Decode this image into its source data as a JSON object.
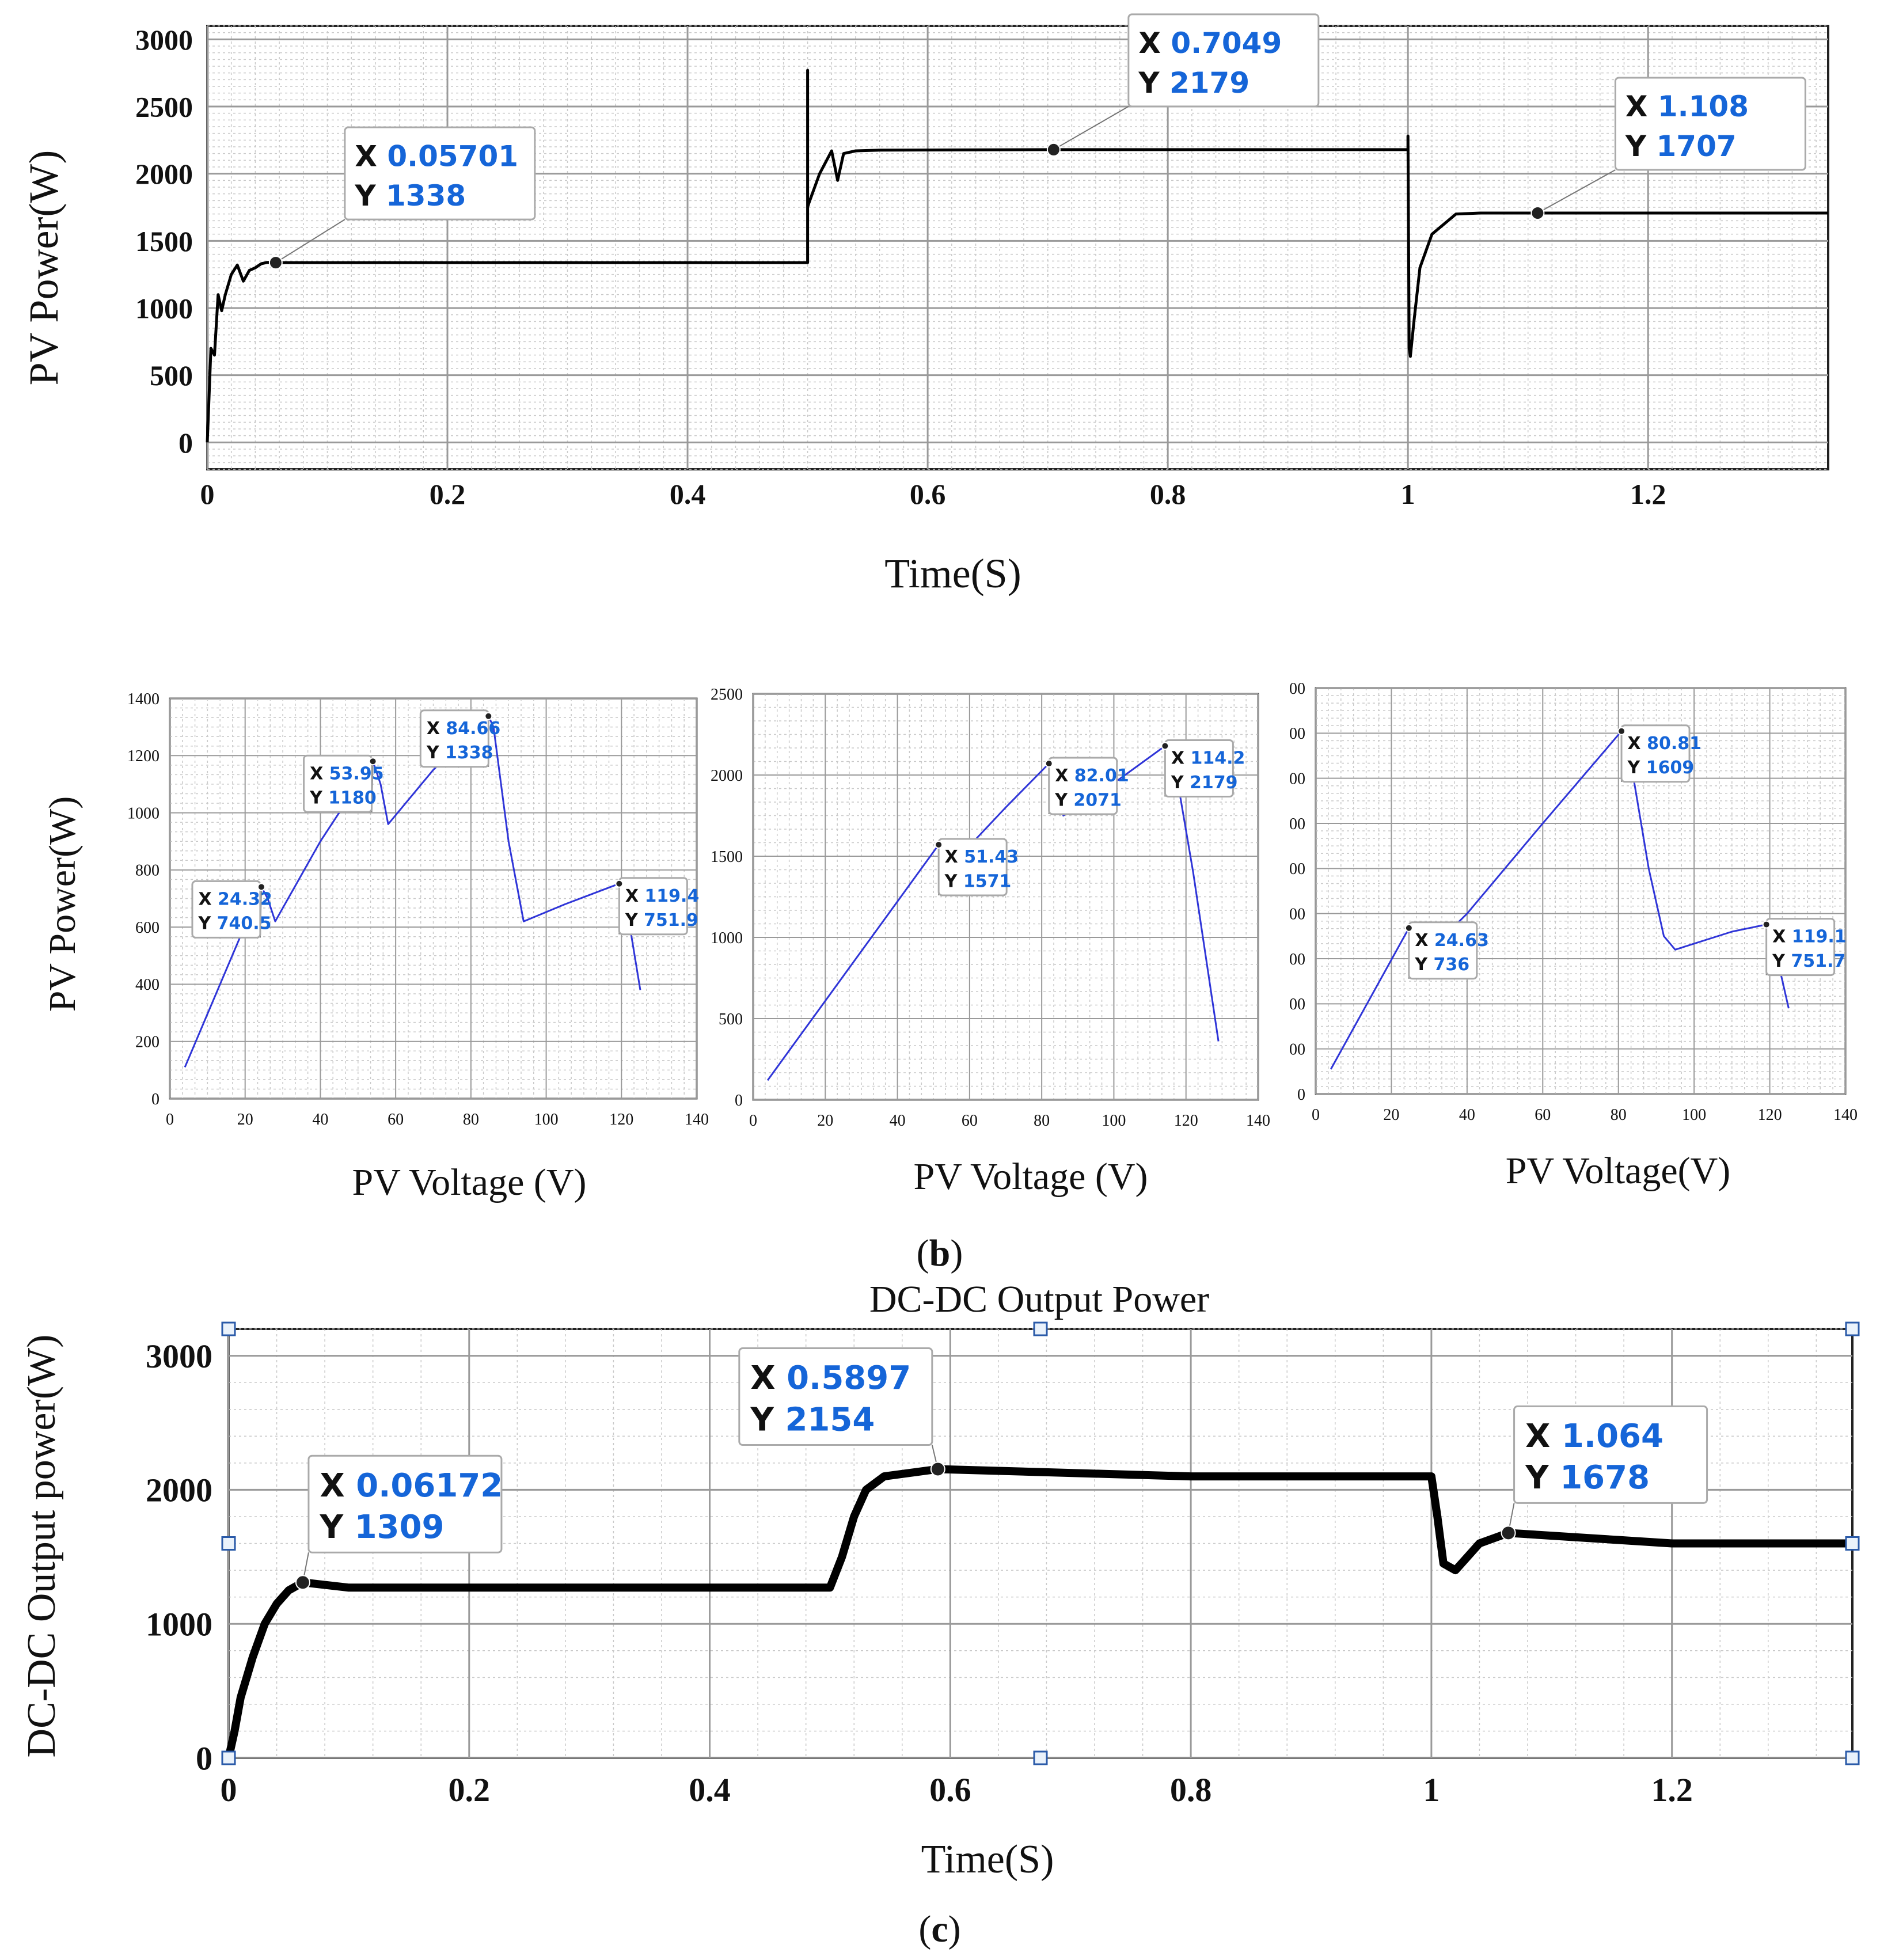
{
  "chart_data": [
    {
      "id": "a",
      "type": "line",
      "title": "",
      "xlabel": "Time(S)",
      "ylabel": "PV Power(W)",
      "xlim": [
        0,
        1.35
      ],
      "ylim": [
        -200,
        3100
      ],
      "xticks": [
        0,
        0.2,
        0.4,
        0.6,
        0.8,
        1,
        1.2
      ],
      "xtick_labels": [
        "0",
        "0.2",
        "0.4",
        "0.6",
        "0.8",
        "1",
        "1.2"
      ],
      "yticks": [
        0,
        500,
        1000,
        1500,
        2000,
        2500,
        3000
      ],
      "ytick_labels": [
        "0",
        "500",
        "1000",
        "1500",
        "2000",
        "2500",
        "3000"
      ],
      "series": [
        {
          "name": "PV Power",
          "x": [
            0,
            0.003,
            0.006,
            0.009,
            0.012,
            0.015,
            0.02,
            0.025,
            0.03,
            0.035,
            0.04,
            0.045,
            0.05,
            0.057,
            0.1,
            0.3,
            0.5,
            0.5,
            0.5,
            0.501,
            0.51,
            0.52,
            0.525,
            0.53,
            0.54,
            0.56,
            0.7049,
            0.9,
            1.0,
            1.0,
            1.001,
            1.002,
            1.005,
            1.01,
            1.02,
            1.04,
            1.06,
            1.108,
            1.35
          ],
          "y": [
            0,
            700,
            650,
            1100,
            980,
            1100,
            1250,
            1320,
            1200,
            1280,
            1300,
            1330,
            1340,
            1338,
            1338,
            1338,
            1338,
            2770,
            1750,
            1780,
            2000,
            2170,
            1950,
            2150,
            2170,
            2175,
            2179,
            2179,
            2179,
            2280,
            700,
            640,
            900,
            1300,
            1550,
            1700,
            1707,
            1707,
            1707
          ]
        }
      ],
      "datatips": [
        {
          "x_label": "X",
          "x_text": "0.05701",
          "y_label": "Y",
          "y_text": "1338",
          "x": 0.05701,
          "y": 1338
        },
        {
          "x_label": "X",
          "x_text": "0.7049",
          "y_label": "Y",
          "y_text": "2179",
          "x": 0.7049,
          "y": 2179
        },
        {
          "x_label": "X",
          "x_text": "1.108",
          "y_label": "Y",
          "y_text": "1707",
          "x": 1.108,
          "y": 1707
        }
      ]
    },
    {
      "id": "b1",
      "type": "line",
      "title": "",
      "xlabel": "PV Voltage (V)",
      "ylabel": "PV Power(W)",
      "xlim": [
        0,
        140
      ],
      "ylim": [
        0,
        1400
      ],
      "xticks": [
        0,
        20,
        40,
        60,
        80,
        100,
        120,
        140
      ],
      "xtick_labels": [
        "0",
        "20",
        "40",
        "60",
        "80",
        "100",
        "120",
        "140"
      ],
      "yticks": [
        0,
        200,
        400,
        600,
        800,
        1000,
        1200,
        1400
      ],
      "ytick_labels": [
        "0",
        "200",
        "400",
        "600",
        "800",
        "1000",
        "1200",
        "1400"
      ],
      "series": [
        {
          "name": "P-V curve 1",
          "x": [
            4,
            24.32,
            26,
            28,
            40,
            53.95,
            56,
            58,
            70,
            84.66,
            86,
            90,
            94,
            105,
            119.4,
            122,
            125
          ],
          "y": [
            110,
            740.5,
            700,
            620,
            900,
            1180,
            1100,
            960,
            1150,
            1338,
            1300,
            900,
            620,
            680,
            751.9,
            620,
            380
          ]
        }
      ],
      "datatips": [
        {
          "x_label": "X",
          "x_text": "24.32",
          "y_label": "Y",
          "y_text": "740.5",
          "x": 24.32,
          "y": 740.5
        },
        {
          "x_label": "X",
          "x_text": "53.95",
          "y_label": "Y",
          "y_text": "1180",
          "x": 53.95,
          "y": 1180
        },
        {
          "x_label": "X",
          "x_text": "84.66",
          "y_label": "Y",
          "y_text": "1338",
          "x": 84.66,
          "y": 1338
        },
        {
          "x_label": "X",
          "x_text": "119.4",
          "y_label": "Y",
          "y_text": "751.9",
          "x": 119.4,
          "y": 751.9
        }
      ]
    },
    {
      "id": "b2",
      "type": "line",
      "title": "",
      "xlabel": "PV Voltage (V)",
      "ylabel": "",
      "xlim": [
        0,
        140
      ],
      "ylim": [
        0,
        2500
      ],
      "xticks": [
        0,
        20,
        40,
        60,
        80,
        100,
        120,
        140
      ],
      "xtick_labels": [
        "0",
        "20",
        "40",
        "60",
        "80",
        "100",
        "120",
        "140"
      ],
      "yticks": [
        0,
        500,
        1000,
        1500,
        2000,
        2500
      ],
      "ytick_labels": [
        "0",
        "500",
        "1000",
        "1500",
        "2000",
        "2500"
      ],
      "series": [
        {
          "name": "P-V curve 2",
          "x": [
            4,
            51.43,
            54,
            56,
            70,
            82.01,
            84,
            86,
            100,
            114.2,
            117,
            122,
            129
          ],
          "y": [
            120,
            1571,
            1500,
            1470,
            1800,
            2071,
            1950,
            1750,
            1950,
            2179,
            2050,
            1400,
            360
          ]
        }
      ],
      "datatips": [
        {
          "x_label": "X",
          "x_text": "51.43",
          "y_label": "Y",
          "y_text": "1571",
          "x": 51.43,
          "y": 1571
        },
        {
          "x_label": "X",
          "x_text": "82.01",
          "y_label": "Y",
          "y_text": "2071",
          "x": 82.01,
          "y": 2071
        },
        {
          "x_label": "X",
          "x_text": "114.2",
          "y_label": "Y",
          "y_text": "2179",
          "x": 114.2,
          "y": 2179
        }
      ]
    },
    {
      "id": "b3",
      "type": "line",
      "title": "",
      "xlabel": "PV Voltage(V)",
      "ylabel": "",
      "xlim": [
        0,
        140
      ],
      "ylim": [
        0,
        1800
      ],
      "xticks": [
        0,
        20,
        40,
        60,
        80,
        100,
        120,
        140
      ],
      "xtick_labels": [
        "0",
        "20",
        "40",
        "60",
        "80",
        "100",
        "120",
        "140"
      ],
      "yticks": [
        0,
        200,
        400,
        600,
        800,
        1000,
        1200,
        1400,
        1600,
        1800
      ],
      "ytick_labels": [
        "0",
        "00",
        "00",
        "00",
        "00",
        "00",
        "00",
        "00",
        "00",
        "00"
      ],
      "series": [
        {
          "name": "P-V curve 3",
          "x": [
            4,
            24.63,
            26,
            28,
            40,
            60,
            80.81,
            83,
            88,
            92,
            95,
            110,
            119.1,
            122,
            125
          ],
          "y": [
            110,
            736,
            700,
            600,
            800,
            1200,
            1609,
            1500,
            1000,
            700,
            640,
            720,
            751.7,
            600,
            380
          ]
        }
      ],
      "datatips": [
        {
          "x_label": "X",
          "x_text": "24.63",
          "y_label": "Y",
          "y_text": "736",
          "x": 24.63,
          "y": 736
        },
        {
          "x_label": "X",
          "x_text": "80.81",
          "y_label": "Y",
          "y_text": "1609",
          "x": 80.81,
          "y": 1609
        },
        {
          "x_label": "X",
          "x_text": "119.1",
          "y_label": "Y",
          "y_text": "751.7",
          "x": 119.1,
          "y": 751.7
        }
      ]
    },
    {
      "id": "c",
      "type": "line",
      "title": "DC-DC Output Power",
      "xlabel": "Time(S)",
      "ylabel": "DC-DC Output power(W)",
      "xlim": [
        0,
        1.35
      ],
      "ylim": [
        0,
        3200
      ],
      "xticks": [
        0,
        0.2,
        0.4,
        0.6,
        0.8,
        1,
        1.2
      ],
      "xtick_labels": [
        "0",
        "0.2",
        "0.4",
        "0.6",
        "0.8",
        "1",
        "1.2"
      ],
      "yticks": [
        0,
        1000,
        2000,
        3000
      ],
      "ytick_labels": [
        "0",
        "1000",
        "2000",
        "3000"
      ],
      "series": [
        {
          "name": "DC-DC Output Power",
          "x": [
            0,
            0.005,
            0.01,
            0.02,
            0.03,
            0.04,
            0.05,
            0.06172,
            0.1,
            0.3,
            0.5,
            0.51,
            0.52,
            0.53,
            0.545,
            0.5897,
            0.8,
            1.0,
            1.005,
            1.01,
            1.02,
            1.04,
            1.064,
            1.2,
            1.35
          ],
          "y": [
            0,
            200,
            450,
            750,
            1000,
            1150,
            1250,
            1309,
            1270,
            1270,
            1270,
            1500,
            1800,
            2000,
            2100,
            2154,
            2100,
            2100,
            1800,
            1450,
            1400,
            1600,
            1678,
            1600,
            1600
          ]
        }
      ],
      "datatips": [
        {
          "x_label": "X",
          "x_text": "0.06172",
          "y_label": "Y",
          "y_text": "1309",
          "x": 0.06172,
          "y": 1309
        },
        {
          "x_label": "X",
          "x_text": "0.5897",
          "y_label": "Y",
          "y_text": "2154",
          "x": 0.5897,
          "y": 2154
        },
        {
          "x_label": "X",
          "x_text": "1.064",
          "y_label": "Y",
          "y_text": "1678",
          "x": 1.064,
          "y": 1678
        }
      ]
    }
  ],
  "captions": {
    "b": {
      "open": "(",
      "letter": "b",
      "close": ")"
    },
    "c": {
      "open": "(",
      "letter": "c",
      "close": ")"
    }
  },
  "colors": {
    "trace_dark": "#000000",
    "trace_blue": "#2f35d8",
    "datatip_text": "#1565d8",
    "grid": "#9a9a9a"
  }
}
